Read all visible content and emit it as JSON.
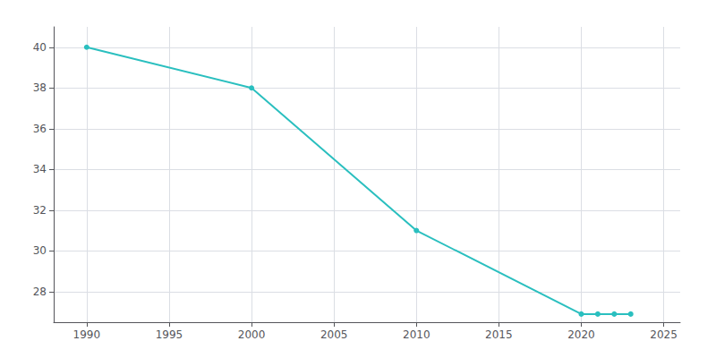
{
  "chart_data": {
    "type": "line",
    "x": [
      1990,
      2000,
      2010,
      2020,
      2021,
      2022,
      2023
    ],
    "values": [
      40.0,
      38.0,
      31.0,
      26.9,
      26.9,
      26.9,
      26.9
    ],
    "color": "#2abfbf",
    "marker": "circle",
    "xlim": [
      1988,
      2026
    ],
    "ylim": [
      26.5,
      41
    ],
    "xticks": [
      1990,
      1995,
      2000,
      2005,
      2010,
      2015,
      2020,
      2025
    ],
    "yticks": [
      28,
      30,
      32,
      34,
      36,
      38,
      40
    ],
    "grid": true
  }
}
